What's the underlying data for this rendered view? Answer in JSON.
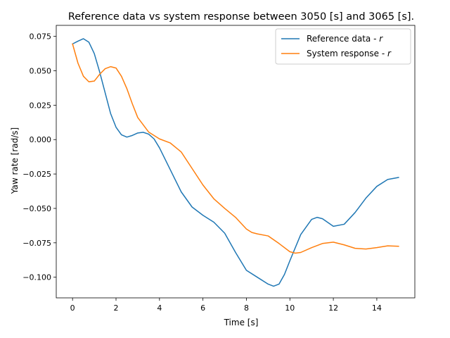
{
  "chart_data": {
    "type": "line",
    "title": "Reference data vs system response between 3050 [s] and 3065 [s].",
    "xlabel": "Time [s]",
    "ylabel": "Yaw rate [rad/s]",
    "xlim": [
      -0.75,
      15.75
    ],
    "ylim": [
      -0.115,
      0.083
    ],
    "xticks": [
      0,
      2,
      4,
      6,
      8,
      10,
      12,
      14
    ],
    "yticks": [
      -0.1,
      -0.075,
      -0.05,
      -0.025,
      0.0,
      0.025,
      0.05,
      0.075
    ],
    "ytick_labels": [
      "−0.100",
      "−0.075",
      "−0.050",
      "−0.025",
      "0.000",
      "0.025",
      "0.050",
      "0.075"
    ],
    "grid": false,
    "legend_position": "upper-right",
    "series": [
      {
        "name": "Reference data - r",
        "legend_prefix": "Reference data - ",
        "legend_symbol": "r",
        "color": "#1f77b4",
        "x": [
          0,
          0.25,
          0.5,
          0.75,
          1.0,
          1.25,
          1.5,
          1.75,
          2.0,
          2.25,
          2.5,
          2.75,
          3.0,
          3.25,
          3.5,
          3.75,
          4.0,
          4.5,
          5.0,
          5.5,
          6.0,
          6.5,
          7.0,
          7.5,
          8.0,
          8.5,
          9.0,
          9.25,
          9.5,
          9.75,
          10.0,
          10.5,
          11.0,
          11.25,
          11.5,
          12.0,
          12.5,
          13.0,
          13.5,
          14.0,
          14.5,
          15.0
        ],
        "y": [
          0.0695,
          0.0715,
          0.0733,
          0.0708,
          0.0625,
          0.049,
          0.034,
          0.019,
          0.009,
          0.0035,
          0.0018,
          0.003,
          0.0048,
          0.0053,
          0.004,
          0.0005,
          -0.006,
          -0.022,
          -0.038,
          -0.049,
          -0.055,
          -0.06,
          -0.068,
          -0.082,
          -0.095,
          -0.1,
          -0.105,
          -0.1065,
          -0.105,
          -0.098,
          -0.088,
          -0.069,
          -0.058,
          -0.0565,
          -0.0575,
          -0.063,
          -0.0615,
          -0.053,
          -0.0425,
          -0.034,
          -0.029,
          -0.0275
        ]
      },
      {
        "name": "System response - r",
        "legend_prefix": "System response - ",
        "legend_symbol": "r",
        "color": "#ff7f0e",
        "x": [
          0,
          0.25,
          0.5,
          0.75,
          1.0,
          1.25,
          1.5,
          1.75,
          2.0,
          2.25,
          2.5,
          2.75,
          3.0,
          3.5,
          4.0,
          4.5,
          5.0,
          5.5,
          6.0,
          6.5,
          7.0,
          7.5,
          8.0,
          8.25,
          8.5,
          9.0,
          9.5,
          10.0,
          10.25,
          10.5,
          11.0,
          11.5,
          12.0,
          12.5,
          13.0,
          13.5,
          14.0,
          14.5,
          15.0
        ],
        "y": [
          0.0695,
          0.0555,
          0.046,
          0.042,
          0.0425,
          0.0475,
          0.0515,
          0.053,
          0.052,
          0.046,
          0.037,
          0.026,
          0.016,
          0.0055,
          0.0005,
          -0.0025,
          -0.009,
          -0.021,
          -0.033,
          -0.043,
          -0.05,
          -0.0565,
          -0.065,
          -0.0675,
          -0.0685,
          -0.07,
          -0.0755,
          -0.0815,
          -0.0825,
          -0.082,
          -0.0785,
          -0.0755,
          -0.0745,
          -0.0765,
          -0.079,
          -0.0795,
          -0.0785,
          -0.0772,
          -0.0775
        ]
      }
    ]
  }
}
